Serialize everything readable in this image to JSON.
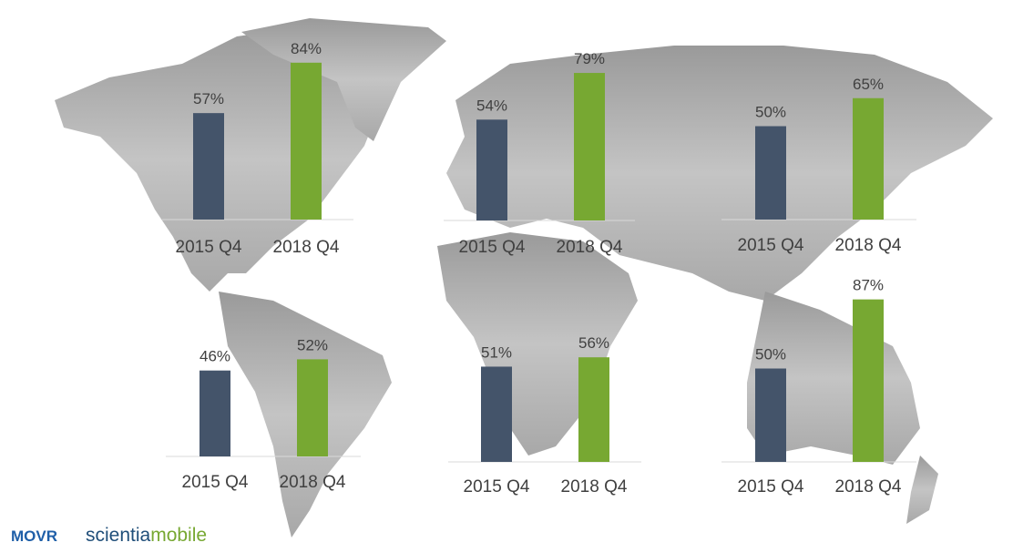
{
  "chart_data": [
    {
      "type": "bar",
      "categories": [
        "2015 Q4",
        "2018 Q4"
      ],
      "values": [
        57,
        84
      ],
      "value_labels": [
        "57%",
        "84%"
      ],
      "colors": [
        "#44546a",
        "#77a832"
      ]
    },
    {
      "type": "bar",
      "categories": [
        "2015 Q4",
        "2018 Q4"
      ],
      "values": [
        54,
        79
      ],
      "value_labels": [
        "54%",
        "79%"
      ],
      "colors": [
        "#44546a",
        "#77a832"
      ]
    },
    {
      "type": "bar",
      "categories": [
        "2015 Q4",
        "2018 Q4"
      ],
      "values": [
        50,
        65
      ],
      "value_labels": [
        "50%",
        "65%"
      ],
      "colors": [
        "#44546a",
        "#77a832"
      ]
    },
    {
      "type": "bar",
      "categories": [
        "2015 Q4",
        "2018 Q4"
      ],
      "values": [
        46,
        52
      ],
      "value_labels": [
        "46%",
        "52%"
      ],
      "colors": [
        "#44546a",
        "#77a832"
      ]
    },
    {
      "type": "bar",
      "categories": [
        "2015 Q4",
        "2018 Q4"
      ],
      "values": [
        51,
        56
      ],
      "value_labels": [
        "51%",
        "56%"
      ],
      "colors": [
        "#44546a",
        "#77a832"
      ]
    },
    {
      "type": "bar",
      "categories": [
        "2015 Q4",
        "2018 Q4"
      ],
      "values": [
        50,
        87
      ],
      "value_labels": [
        "50%",
        "87%"
      ],
      "colors": [
        "#44546a",
        "#77a832"
      ]
    }
  ],
  "footer": {
    "brand": "MOVR",
    "logo_part1": "scientia",
    "logo_part2": "mobile"
  }
}
